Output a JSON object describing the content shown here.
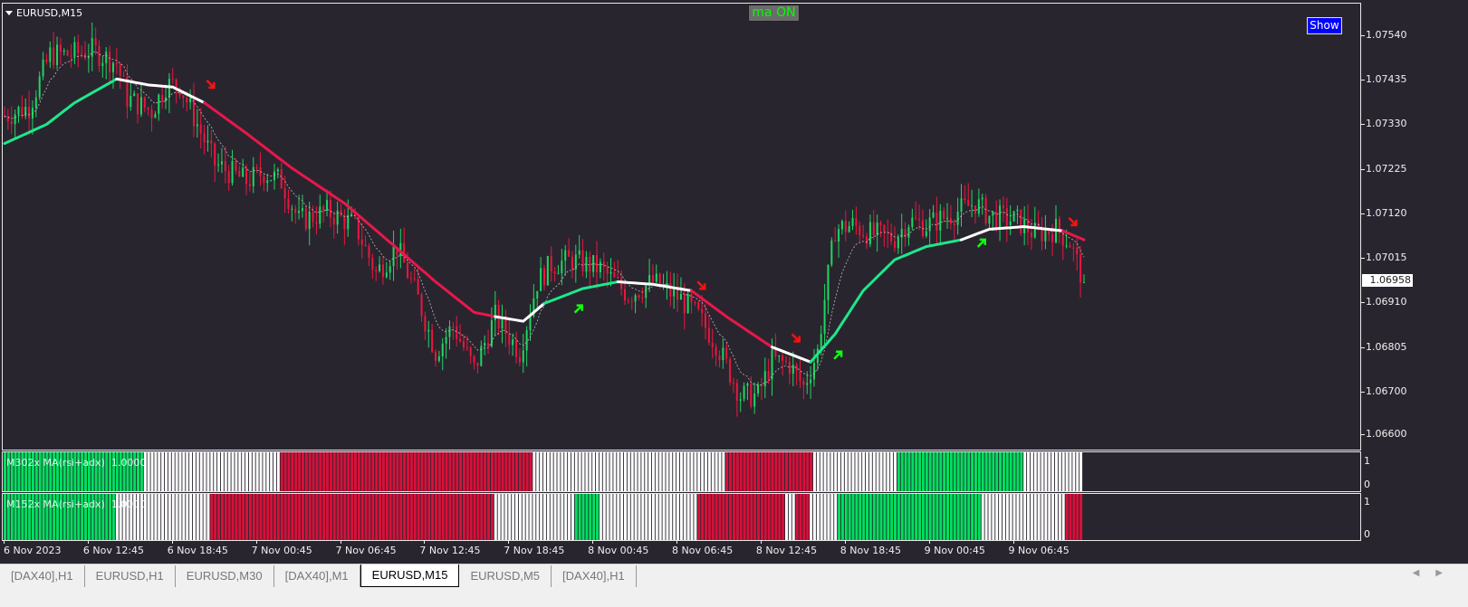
{
  "window": {
    "symbol_label": "EURUSD,M15"
  },
  "buttons": {
    "ma_toggle": "ma ON",
    "show": "Show"
  },
  "price_axis": {
    "ticks": [
      "1.07540",
      "1.07435",
      "1.07330",
      "1.07225",
      "1.07120",
      "1.07015",
      "1.06910",
      "1.06805",
      "1.06700",
      "1.06600"
    ],
    "current_price": "1.06958"
  },
  "time_axis": {
    "ticks": [
      "6 Nov 2023",
      "6 Nov 12:45",
      "6 Nov 18:45",
      "7 Nov 00:45",
      "7 Nov 06:45",
      "7 Nov 12:45",
      "7 Nov 18:45",
      "8 Nov 00:45",
      "8 Nov 06:45",
      "8 Nov 12:45",
      "8 Nov 18:45",
      "9 Nov 00:45",
      "9 Nov 06:45"
    ],
    "bars_between_ticks": 24
  },
  "colors": {
    "background": "#29252f",
    "bull": "#1ed760",
    "bear": "#e8173f",
    "neutral": "#ffffff",
    "ma_green": "#1ee88a",
    "ma_red": "#e8174a"
  },
  "chart_data": {
    "type": "candlestick",
    "symbol": "EURUSD",
    "timeframe": "M15",
    "ylim": [
      1.0659,
      1.0759
    ],
    "price_path": [
      [
        0,
        1.0735
      ],
      [
        7,
        1.07371
      ],
      [
        13,
        1.07495
      ],
      [
        19,
        1.07495
      ],
      [
        25,
        1.07505
      ],
      [
        32,
        1.07474
      ],
      [
        35,
        1.07392
      ],
      [
        42,
        1.07361
      ],
      [
        46,
        1.07423
      ],
      [
        50,
        1.07423
      ],
      [
        55,
        1.0733
      ],
      [
        60,
        1.07237
      ],
      [
        69,
        1.07196
      ],
      [
        74,
        1.07217
      ],
      [
        79,
        1.07196
      ],
      [
        84,
        1.07103
      ],
      [
        92,
        1.07124
      ],
      [
        100,
        1.07093
      ],
      [
        106,
        1.0698
      ],
      [
        112,
        1.07041
      ],
      [
        118,
        1.06918
      ],
      [
        123,
        1.06794
      ],
      [
        128,
        1.06856
      ],
      [
        134,
        1.06753
      ],
      [
        140,
        1.06877
      ],
      [
        147,
        1.06794
      ],
      [
        152,
        1.06959
      ],
      [
        156,
        1.07
      ],
      [
        162,
        1.0701
      ],
      [
        170,
        1.0699
      ],
      [
        178,
        1.06928
      ],
      [
        185,
        1.06959
      ],
      [
        193,
        1.06918
      ],
      [
        198,
        1.06877
      ],
      [
        203,
        1.06815
      ],
      [
        210,
        1.06691
      ],
      [
        215,
        1.06691
      ],
      [
        219,
        1.06774
      ],
      [
        224,
        1.06764
      ],
      [
        228,
        1.06712
      ],
      [
        232,
        1.06794
      ],
      [
        234,
        1.06918
      ],
      [
        237,
        1.07083
      ],
      [
        242,
        1.07093
      ],
      [
        247,
        1.07072
      ],
      [
        254,
        1.07062
      ],
      [
        258,
        1.07103
      ],
      [
        263,
        1.07093
      ],
      [
        269,
        1.07114
      ],
      [
        277,
        1.07145
      ],
      [
        281,
        1.07114
      ],
      [
        289,
        1.07103
      ],
      [
        294,
        1.07072
      ],
      [
        300,
        1.07083
      ],
      [
        304,
        1.07052
      ],
      [
        308,
        1.06958
      ]
    ],
    "ma": [
      [
        0,
        1.07285
      ],
      [
        12,
        1.0733
      ],
      [
        20,
        1.07381
      ],
      [
        32,
        1.07437
      ],
      [
        41,
        1.07423
      ],
      [
        48,
        1.07418
      ],
      [
        57,
        1.07381
      ],
      [
        69,
        1.07309
      ],
      [
        82,
        1.07227
      ],
      [
        97,
        1.07144
      ],
      [
        110,
        1.07052
      ],
      [
        123,
        1.06959
      ],
      [
        134,
        1.06887
      ],
      [
        140,
        1.06877
      ],
      [
        148,
        1.06866
      ],
      [
        154,
        1.06908
      ],
      [
        165,
        1.06943
      ],
      [
        175,
        1.06959
      ],
      [
        185,
        1.06953
      ],
      [
        196,
        1.06938
      ],
      [
        206,
        1.06877
      ],
      [
        219,
        1.06805
      ],
      [
        230,
        1.0677
      ],
      [
        237,
        1.06836
      ],
      [
        245,
        1.06938
      ],
      [
        254,
        1.07011
      ],
      [
        263,
        1.07042
      ],
      [
        273,
        1.07058
      ],
      [
        281,
        1.07083
      ],
      [
        291,
        1.07089
      ],
      [
        302,
        1.07079
      ],
      [
        308,
        1.07058
      ]
    ],
    "ma_segments": [
      [
        0,
        32,
        "green"
      ],
      [
        32,
        57,
        "white"
      ],
      [
        57,
        140,
        "red"
      ],
      [
        140,
        154,
        "white"
      ],
      [
        154,
        175,
        "green"
      ],
      [
        175,
        196,
        "white"
      ],
      [
        196,
        219,
        "red"
      ],
      [
        219,
        230,
        "white"
      ],
      [
        230,
        273,
        "green"
      ],
      [
        273,
        302,
        "white"
      ],
      [
        302,
        308,
        "red"
      ]
    ],
    "signals": [
      {
        "type": "sell",
        "bar": 59,
        "price": 1.07423
      },
      {
        "type": "buy",
        "bar": 164,
        "price": 1.06897
      },
      {
        "type": "sell",
        "bar": 199,
        "price": 1.06949
      },
      {
        "type": "sell",
        "bar": 226,
        "price": 1.06825
      },
      {
        "type": "buy",
        "bar": 238,
        "price": 1.06788
      },
      {
        "type": "buy",
        "bar": 279,
        "price": 1.07052
      },
      {
        "type": "sell",
        "bar": 305,
        "price": 1.07099
      }
    ]
  },
  "indicators": [
    {
      "label": "M302x MA(rsi+adx)",
      "value": "1.0000",
      "axis": [
        "1",
        "0"
      ],
      "segments": [
        [
          0,
          40,
          "green"
        ],
        [
          40,
          79,
          "white"
        ],
        [
          79,
          151,
          "red"
        ],
        [
          151,
          206,
          "white"
        ],
        [
          206,
          231,
          "red"
        ],
        [
          231,
          255,
          "white"
        ],
        [
          255,
          291,
          "green"
        ],
        [
          291,
          308,
          "white"
        ]
      ]
    },
    {
      "label": "M152x MA(rsi+adx)",
      "value": "1.0000",
      "axis": [
        "1",
        "0"
      ],
      "segments": [
        [
          0,
          32,
          "green"
        ],
        [
          32,
          59,
          "white"
        ],
        [
          59,
          140,
          "red"
        ],
        [
          140,
          163,
          "white"
        ],
        [
          163,
          170,
          "green"
        ],
        [
          170,
          198,
          "white"
        ],
        [
          198,
          223,
          "red"
        ],
        [
          223,
          226,
          "white"
        ],
        [
          226,
          230,
          "red"
        ],
        [
          230,
          238,
          "white"
        ],
        [
          238,
          279,
          "green"
        ],
        [
          279,
          303,
          "white"
        ],
        [
          303,
          308,
          "red"
        ]
      ]
    }
  ],
  "tabs": [
    {
      "label": "[DAX40],H1",
      "active": false
    },
    {
      "label": "EURUSD,H1",
      "active": false
    },
    {
      "label": "EURUSD,M30",
      "active": false
    },
    {
      "label": "[DAX40],M1",
      "active": false
    },
    {
      "label": "EURUSD,M15",
      "active": true
    },
    {
      "label": "EURUSD,M5",
      "active": false
    },
    {
      "label": "[DAX40],H1",
      "active": false
    }
  ],
  "tab_nav": [
    "◀",
    "▶"
  ]
}
